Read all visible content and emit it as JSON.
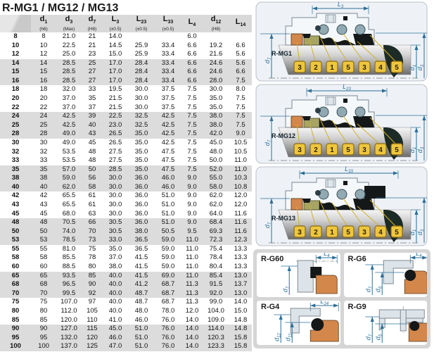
{
  "title": "R-MG1 / MG12 / MG13",
  "table": {
    "columns": [
      {
        "sym": "",
        "sub": "",
        "note": ""
      },
      {
        "sym": "d",
        "sub": "1",
        "note": "(h6)"
      },
      {
        "sym": "d",
        "sub": "3",
        "note": "(Max)"
      },
      {
        "sym": "d",
        "sub": "7",
        "note": "(H8)"
      },
      {
        "sym": "L",
        "sub": "3",
        "note": "(±0.5)"
      },
      {
        "sym": "L",
        "sub": "23",
        "note": "(±0.5)"
      },
      {
        "sym": "L",
        "sub": "33",
        "note": "(±0.5)"
      },
      {
        "sym": "L",
        "sub": "4",
        "note": ""
      },
      {
        "sym": "d",
        "sub": "12",
        "note": "(H8)"
      },
      {
        "sym": "L",
        "sub": "14",
        "note": ""
      }
    ],
    "rows": [
      [
        "8",
        "8",
        "21.0",
        "21",
        "14.0",
        "",
        "",
        "6.0",
        "",
        ""
      ],
      [
        "10",
        "10",
        "22.5",
        "21",
        "14.5",
        "25.9",
        "33.4",
        "6.6",
        "19.2",
        "6.6"
      ],
      [
        "12",
        "12",
        "25.0",
        "23",
        "15.0",
        "25.9",
        "33.4",
        "6.6",
        "21.6",
        "5.6"
      ],
      [
        "14",
        "14",
        "28.5",
        "25",
        "17.0",
        "28.4",
        "33.4",
        "6.6",
        "24.6",
        "5.6"
      ],
      [
        "15",
        "15",
        "28.5",
        "27",
        "17.0",
        "28.4",
        "33.4",
        "6.6",
        "24.6",
        "6.6"
      ],
      [
        "16",
        "16",
        "28.5",
        "27",
        "17.0",
        "28.4",
        "33.4",
        "6.6",
        "28.0",
        "7.5"
      ],
      [
        "18",
        "18",
        "32.0",
        "33",
        "19.5",
        "30.0",
        "37.5",
        "7.5",
        "30.0",
        "8.0"
      ],
      [
        "20",
        "20",
        "37.0",
        "35",
        "21.5",
        "30.0",
        "37.5",
        "7.5",
        "35.0",
        "7.5"
      ],
      [
        "22",
        "22",
        "37.0",
        "37",
        "21.5",
        "30.0",
        "37.5",
        "7.5",
        "35.0",
        "7.5"
      ],
      [
        "24",
        "24",
        "42.5",
        "39",
        "22.5",
        "32.5",
        "42.5",
        "7.5",
        "38.0",
        "7.5"
      ],
      [
        "25",
        "25",
        "42.5",
        "40",
        "23.0",
        "32.5",
        "42.5",
        "7.5",
        "38.0",
        "7.5"
      ],
      [
        "28",
        "28",
        "49.0",
        "43",
        "26.5",
        "35.0",
        "42.5",
        "7.5",
        "42.0",
        "9.0"
      ],
      [
        "30",
        "30",
        "49.0",
        "45",
        "26.5",
        "35.0",
        "42.5",
        "7.5",
        "45.0",
        "10.5"
      ],
      [
        "32",
        "32",
        "53.5",
        "48",
        "27.5",
        "35.0",
        "47.5",
        "7.5",
        "48.0",
        "10.5"
      ],
      [
        "33",
        "33",
        "53.5",
        "48",
        "27.5",
        "35.0",
        "47.5",
        "7.5",
        "50.0",
        "11.0"
      ],
      [
        "35",
        "35",
        "57.0",
        "50",
        "28.5",
        "35.0",
        "47.5",
        "7.5",
        "52.0",
        "11.0"
      ],
      [
        "38",
        "38",
        "59.0",
        "56",
        "30.0",
        "36.0",
        "46.0",
        "9.0",
        "55.0",
        "10.3"
      ],
      [
        "40",
        "40",
        "62.0",
        "58",
        "30.0",
        "36.0",
        "46.0",
        "9.0",
        "58.0",
        "10.8"
      ],
      [
        "42",
        "42",
        "65.5",
        "61",
        "30.0",
        "36.0",
        "51.0",
        "9.0",
        "62.0",
        "12.0"
      ],
      [
        "43",
        "43",
        "65.5",
        "61",
        "30.0",
        "36.0",
        "51.0",
        "9.0",
        "62.0",
        "12.0"
      ],
      [
        "45",
        "45",
        "68.0",
        "63",
        "30.0",
        "36.0",
        "51.0",
        "9.0",
        "64.0",
        "11.6"
      ],
      [
        "48",
        "48",
        "70.5",
        "66",
        "30.5",
        "36.0",
        "51.0",
        "9.0",
        "68.4",
        "11.6"
      ],
      [
        "50",
        "50",
        "74.0",
        "70",
        "30.5",
        "38.0",
        "50.5",
        "9.5",
        "69.3",
        "11.6"
      ],
      [
        "53",
        "53",
        "78.5",
        "73",
        "33.0",
        "36.5",
        "59.0",
        "11.0",
        "72.3",
        "12.3"
      ],
      [
        "55",
        "55",
        "81.0",
        "75",
        "35.0",
        "36.5",
        "59.0",
        "11.0",
        "75.4",
        "13.3"
      ],
      [
        "58",
        "58",
        "85.5",
        "78",
        "37.0",
        "41.5",
        "59.0",
        "11.0",
        "78.4",
        "13.3"
      ],
      [
        "60",
        "60",
        "88.5",
        "80",
        "38.0",
        "41.5",
        "59.0",
        "11.0",
        "80.4",
        "13.3"
      ],
      [
        "65",
        "65",
        "93.5",
        "85",
        "40.0",
        "41.5",
        "69.0",
        "11.0",
        "85.4",
        "13.0"
      ],
      [
        "68",
        "68",
        "96.5",
        "90",
        "40.0",
        "41.2",
        "68.7",
        "11.3",
        "91.5",
        "13.7"
      ],
      [
        "70",
        "70",
        "99.5",
        "92",
        "40.0",
        "48.7",
        "68.7",
        "11.3",
        "92.0",
        "13.0"
      ],
      [
        "75",
        "75",
        "107.0",
        "97",
        "40.0",
        "48.7",
        "68.7",
        "11.3",
        "99.0",
        "14.0"
      ],
      [
        "80",
        "80",
        "112.0",
        "105",
        "40.0",
        "48.0",
        "78.0",
        "12.0",
        "104.0",
        "15.0"
      ],
      [
        "85",
        "85",
        "120.0",
        "110",
        "41.0",
        "46.0",
        "76.0",
        "14.0",
        "109.0",
        "14.8"
      ],
      [
        "90",
        "90",
        "127.0",
        "115",
        "45.0",
        "51.0",
        "76.0",
        "14.0",
        "114.0",
        "14.8"
      ],
      [
        "95",
        "95",
        "132.0",
        "120",
        "46.0",
        "51.0",
        "76.0",
        "14.0",
        "120.3",
        "15.8"
      ],
      [
        "100",
        "100",
        "137.0",
        "125",
        "47.0",
        "51.0",
        "76.0",
        "14.0",
        "123.3",
        "15.8"
      ]
    ]
  },
  "diagrams": [
    {
      "label": "R-MG1",
      "top_sym": "L",
      "top_sub": "3",
      "span": [
        84,
        164
      ],
      "left_sym": "d",
      "left_sub": "7",
      "right1_sym": "d",
      "right1_sub": "1",
      "right2_sym": "d",
      "right2_sub": "3",
      "callouts": [
        "3",
        "2",
        "1",
        "5",
        "3",
        "4",
        "5"
      ],
      "extra": ""
    },
    {
      "label": "R-MG12",
      "top_sym": "L",
      "top_sub": "23",
      "span": [
        76,
        190
      ],
      "left_sym": "d",
      "left_sub": "7",
      "right1_sym": "d",
      "right1_sub": "1",
      "right2_sym": "d",
      "right2_sub": "3",
      "callouts": [
        "3",
        "2",
        "1",
        "5",
        "3",
        "4",
        "5"
      ],
      "extra": ""
    },
    {
      "label": "R-MG13",
      "top_sym": "L",
      "top_sub": "33",
      "span": [
        66,
        206
      ],
      "left_sym": "d",
      "left_sub": "7",
      "right1_sym": "d",
      "right1_sub": "1",
      "right2_sym": "d",
      "right2_sub": "3",
      "callouts": [
        "3",
        "2",
        "1",
        "5",
        "3",
        "4",
        "5"
      ],
      "extra": "block"
    }
  ],
  "details": [
    {
      "label": "R-G60",
      "top_sym": "L",
      "top_sub": "4",
      "dims": [
        {
          "sym": "d",
          "sub": "7"
        }
      ]
    },
    {
      "label": "R-G6",
      "top_sym": "L",
      "top_sub": "4",
      "dims": [
        {
          "sym": "d",
          "sub": "7"
        },
        {
          "sym": "d",
          "sub": "6"
        }
      ]
    },
    {
      "label": "R-G4",
      "top_sym": "L",
      "top_sub": "14",
      "dims": [
        {
          "sym": "d",
          "sub": "12"
        },
        {
          "sym": "d",
          "sub": "11"
        }
      ]
    },
    {
      "label": "R-G9",
      "top_sym": "",
      "top_sub": "",
      "dims": [
        {
          "sym": "d",
          "sub": "7"
        },
        {
          "sym": "d",
          "sub": "6"
        }
      ]
    }
  ],
  "colors": {
    "dim": "#2c6f99",
    "callout_fill": "#eec63e",
    "callout_border": "#8a6a14",
    "callout_text": "#2e2404",
    "leader": "#d2af2a",
    "orange": "#d4874b",
    "olive": "#a8a464",
    "spring": "#90a9b3",
    "black_part": "#151818",
    "panel_fill": "#eef2f6",
    "panel_border": "#b9c0c8",
    "gland_fill": "#f4f8fb",
    "gland_stroke": "#7c8791",
    "gray_part": "#dde4e9",
    "gray_stroke": "#7f8a94"
  }
}
